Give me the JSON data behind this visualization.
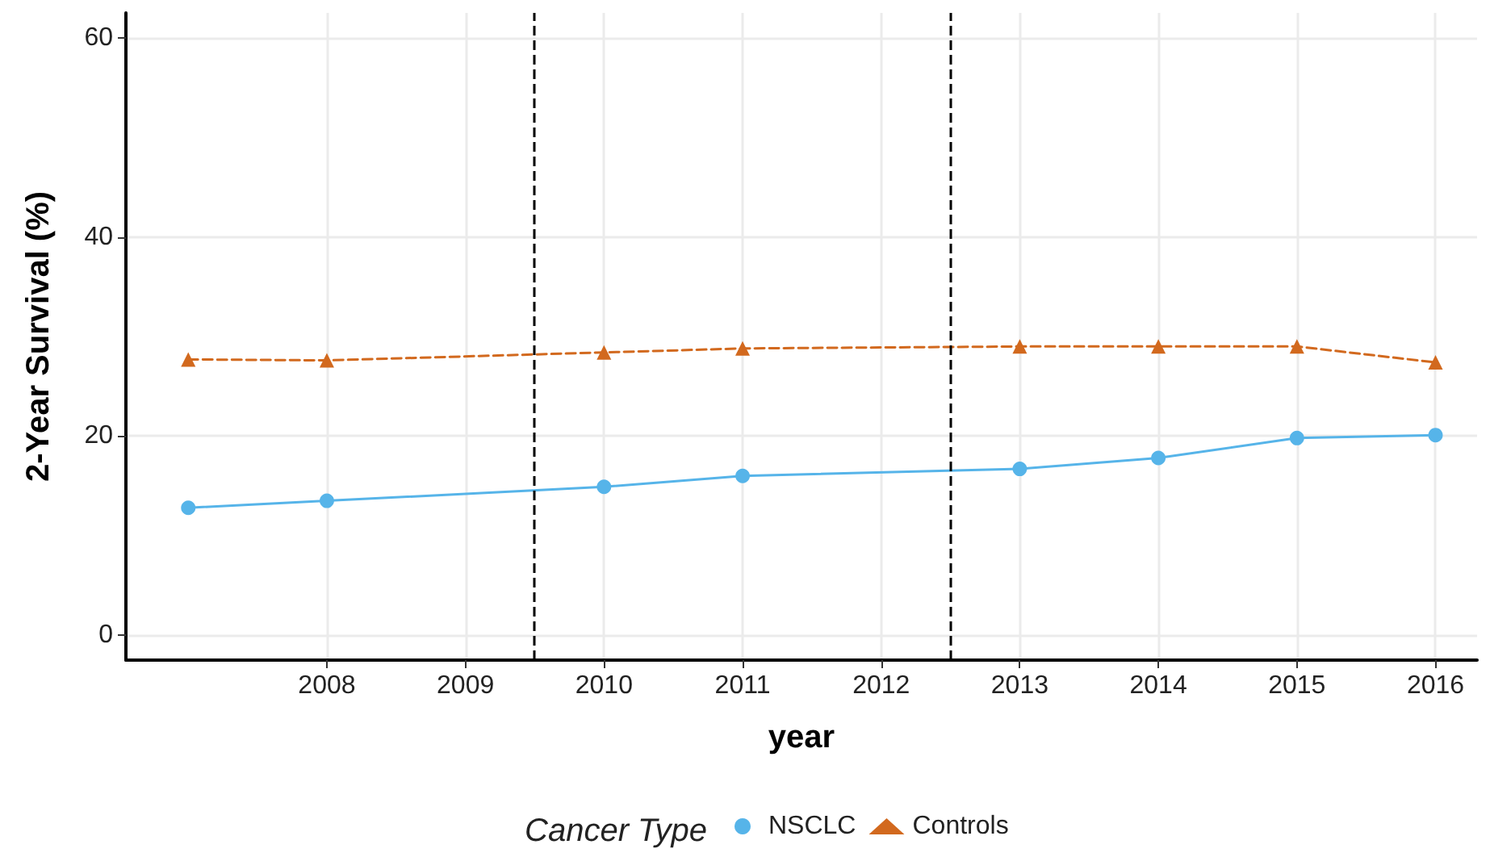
{
  "chart_data": {
    "type": "line",
    "xlabel": "year",
    "ylabel": "2-Year Survival (%)",
    "legend_title": "Cancer Type",
    "legend": "bottom",
    "grid": true,
    "xlim": [
      2006.55,
      2016.3
    ],
    "xticks": [
      2008,
      2009,
      2010,
      2011,
      2012,
      2013,
      2014,
      2015,
      2016
    ],
    "ylim": [
      -2.5,
      62.5
    ],
    "yticks": [
      0,
      20,
      40,
      60
    ],
    "series": [
      {
        "name": "NSCLC",
        "color": "#56b4e9",
        "marker": "circle",
        "line_style": "solid",
        "x": [
          2007,
          2008,
          2010,
          2011,
          2013,
          2014,
          2015,
          2016
        ],
        "values": [
          12.8,
          13.5,
          14.9,
          16.0,
          16.7,
          17.8,
          19.8,
          20.1
        ]
      },
      {
        "name": "Controls",
        "color": "#d2691e",
        "marker": "triangle",
        "line_style": "dashed",
        "x": [
          2007,
          2008,
          2010,
          2011,
          2013,
          2014,
          2015,
          2016
        ],
        "values": [
          27.7,
          27.6,
          28.4,
          28.8,
          29.0,
          29.0,
          29.0,
          27.4
        ]
      }
    ],
    "ref_lines": [
      {
        "axis": "x",
        "value": 2009.5,
        "color": "#000000",
        "line_style": "dashed"
      },
      {
        "axis": "x",
        "value": 2012.5,
        "color": "#000000",
        "line_style": "dashed"
      }
    ]
  }
}
